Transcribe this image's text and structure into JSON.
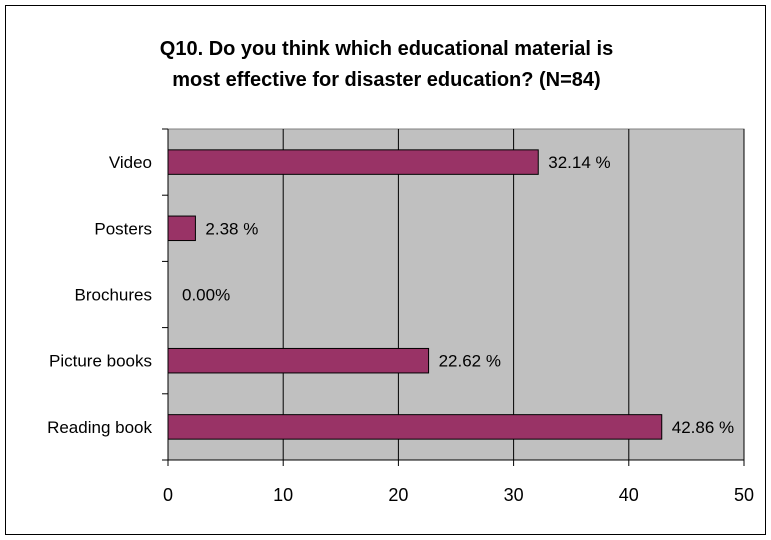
{
  "chart_data": {
    "type": "bar",
    "orientation": "horizontal",
    "title": "Q10. Do you think which educational material is\nmost effective for disaster education? (N=84)",
    "categories": [
      "Video",
      "Posters",
      "Brochures",
      "Picture books",
      "Reading book"
    ],
    "values": [
      32.14,
      2.38,
      0.0,
      22.62,
      42.86
    ],
    "data_labels": [
      "32.14 %",
      "2.38 %",
      "0.00%",
      "22.62 %",
      "42.86 %"
    ],
    "xlim": [
      0,
      50
    ],
    "xticks": [
      0,
      10,
      20,
      30,
      40,
      50
    ],
    "grid": "vertical",
    "legend": "none",
    "colors": {
      "bar": "#993366",
      "plot_background": "#c0c0c0",
      "grid": "#000000"
    }
  }
}
